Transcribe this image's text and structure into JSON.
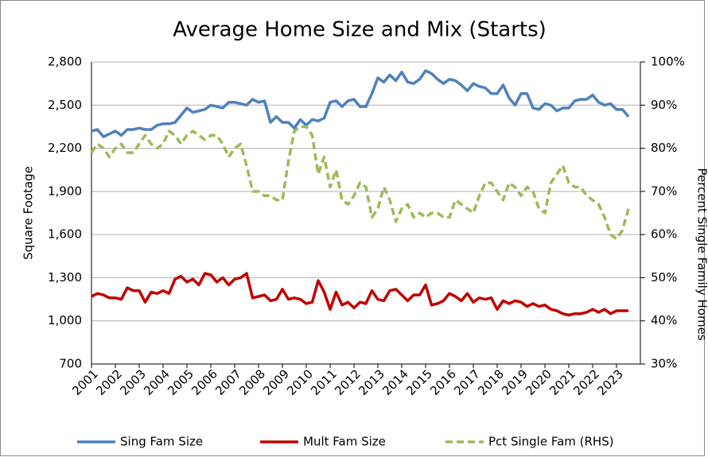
{
  "chart_data": {
    "type": "line",
    "title": "Average Home Size and Mix (Starts)",
    "ylabel": "Square Footage",
    "y2label": "Percent Single Family Homes",
    "categories": [
      "2001",
      null,
      null,
      null,
      "2002",
      null,
      null,
      null,
      "2003",
      null,
      null,
      null,
      "2004",
      null,
      null,
      null,
      "2005",
      null,
      null,
      null,
      "2006",
      null,
      null,
      null,
      "2007",
      null,
      null,
      null,
      "2008",
      null,
      null,
      null,
      "2009",
      null,
      null,
      null,
      "2010",
      null,
      null,
      null,
      "2011",
      null,
      null,
      null,
      "2012",
      null,
      null,
      null,
      "2013",
      null,
      null,
      null,
      "2014",
      null,
      null,
      null,
      "2015",
      null,
      null,
      null,
      "2016",
      null,
      null,
      null,
      "2017",
      null,
      null,
      null,
      "2018",
      null,
      null,
      null,
      "2019",
      null,
      null,
      null,
      "2020",
      null,
      null,
      null,
      "2021",
      null,
      null,
      null,
      "2022",
      null,
      null,
      null,
      "2023",
      null,
      null
    ],
    "ylim": [
      700,
      2800
    ],
    "yticks": [
      700,
      {
        "value": 1000,
        "label": "1,000"
      },
      {
        "value": 1300,
        "label": "1,300"
      },
      {
        "value": 1600,
        "label": "1,600"
      },
      {
        "value": 1900,
        "label": "1,900"
      },
      {
        "value": 2200,
        "label": "2,200"
      },
      {
        "value": 2500,
        "label": "2,500"
      },
      {
        "value": 2800,
        "label": "2,800"
      }
    ],
    "y2lim": [
      30,
      100
    ],
    "y2ticks": [
      {
        "value": 30,
        "label": "30%"
      },
      {
        "value": 40,
        "label": "40%"
      },
      {
        "value": 50,
        "label": "50%"
      },
      {
        "value": 60,
        "label": "60%"
      },
      {
        "value": 70,
        "label": "70%"
      },
      {
        "value": 80,
        "label": "80%"
      },
      {
        "value": 90,
        "label": "90%"
      },
      {
        "value": 100,
        "label": "100%"
      }
    ],
    "grid": true,
    "legend": "bottom",
    "series": [
      {
        "name": "Sing Fam Size",
        "color": "#4f81bd",
        "values": [
          2320,
          2330,
          2280,
          2300,
          2320,
          2290,
          2330,
          2330,
          2340,
          2330,
          2330,
          2360,
          2370,
          2370,
          2380,
          2430,
          2480,
          2450,
          2460,
          2470,
          2500,
          2490,
          2480,
          2520,
          2520,
          2510,
          2500,
          2540,
          2520,
          2530,
          2380,
          2420,
          2380,
          2380,
          2340,
          2400,
          2360,
          2400,
          2390,
          2410,
          2520,
          2530,
          2490,
          2530,
          2540,
          2490,
          2490,
          2580,
          2690,
          2660,
          2710,
          2670,
          2730,
          2660,
          2650,
          2680,
          2740,
          2720,
          2680,
          2650,
          2680,
          2670,
          2640,
          2600,
          2650,
          2630,
          2620,
          2580,
          2580,
          2640,
          2550,
          2500,
          2580,
          2580,
          2480,
          2470,
          2510,
          2500,
          2460,
          2480,
          2480,
          2530,
          2540,
          2540,
          2570,
          2520,
          2500,
          2510,
          2470,
          2470,
          2420
        ]
      },
      {
        "name": "Mult Fam Size",
        "color": "#c00000",
        "values": [
          1170,
          1190,
          1180,
          1160,
          1160,
          1150,
          1230,
          1210,
          1210,
          1130,
          1200,
          1190,
          1210,
          1190,
          1290,
          1310,
          1270,
          1290,
          1250,
          1330,
          1320,
          1270,
          1300,
          1250,
          1290,
          1300,
          1330,
          1160,
          1170,
          1180,
          1140,
          1150,
          1220,
          1150,
          1160,
          1150,
          1120,
          1130,
          1280,
          1200,
          1080,
          1200,
          1110,
          1130,
          1090,
          1130,
          1120,
          1210,
          1150,
          1140,
          1210,
          1220,
          1180,
          1140,
          1180,
          1180,
          1250,
          1110,
          1120,
          1140,
          1190,
          1170,
          1140,
          1190,
          1130,
          1160,
          1150,
          1160,
          1080,
          1140,
          1120,
          1140,
          1130,
          1100,
          1120,
          1100,
          1110,
          1080,
          1070,
          1050,
          1040,
          1050,
          1050,
          1060,
          1080,
          1060,
          1080,
          1050,
          1070,
          1070,
          1070
        ]
      },
      {
        "name": "Pct Single Fam (RHS)",
        "color": "#9bbb59",
        "axis": "y2",
        "style": "dashed",
        "values": [
          79,
          81,
          80,
          78,
          80,
          81,
          79,
          79,
          81,
          83,
          81,
          80,
          81,
          84,
          83,
          81,
          83,
          84,
          83,
          82,
          83,
          83,
          81,
          78,
          80,
          81,
          76,
          70,
          70,
          69,
          69,
          68,
          68,
          77,
          84,
          85,
          85,
          83,
          74,
          78,
          71,
          75,
          68,
          67,
          69,
          72,
          71,
          64,
          66,
          71,
          68,
          63,
          66,
          67,
          64,
          65,
          64,
          65,
          65,
          64,
          64,
          68,
          67,
          66,
          65,
          69,
          72,
          72,
          70,
          68,
          72,
          71,
          69,
          71,
          70,
          66,
          65,
          72,
          74,
          76,
          72,
          71,
          71,
          69,
          68,
          67,
          64,
          60,
          59,
          61,
          66
        ]
      }
    ]
  }
}
